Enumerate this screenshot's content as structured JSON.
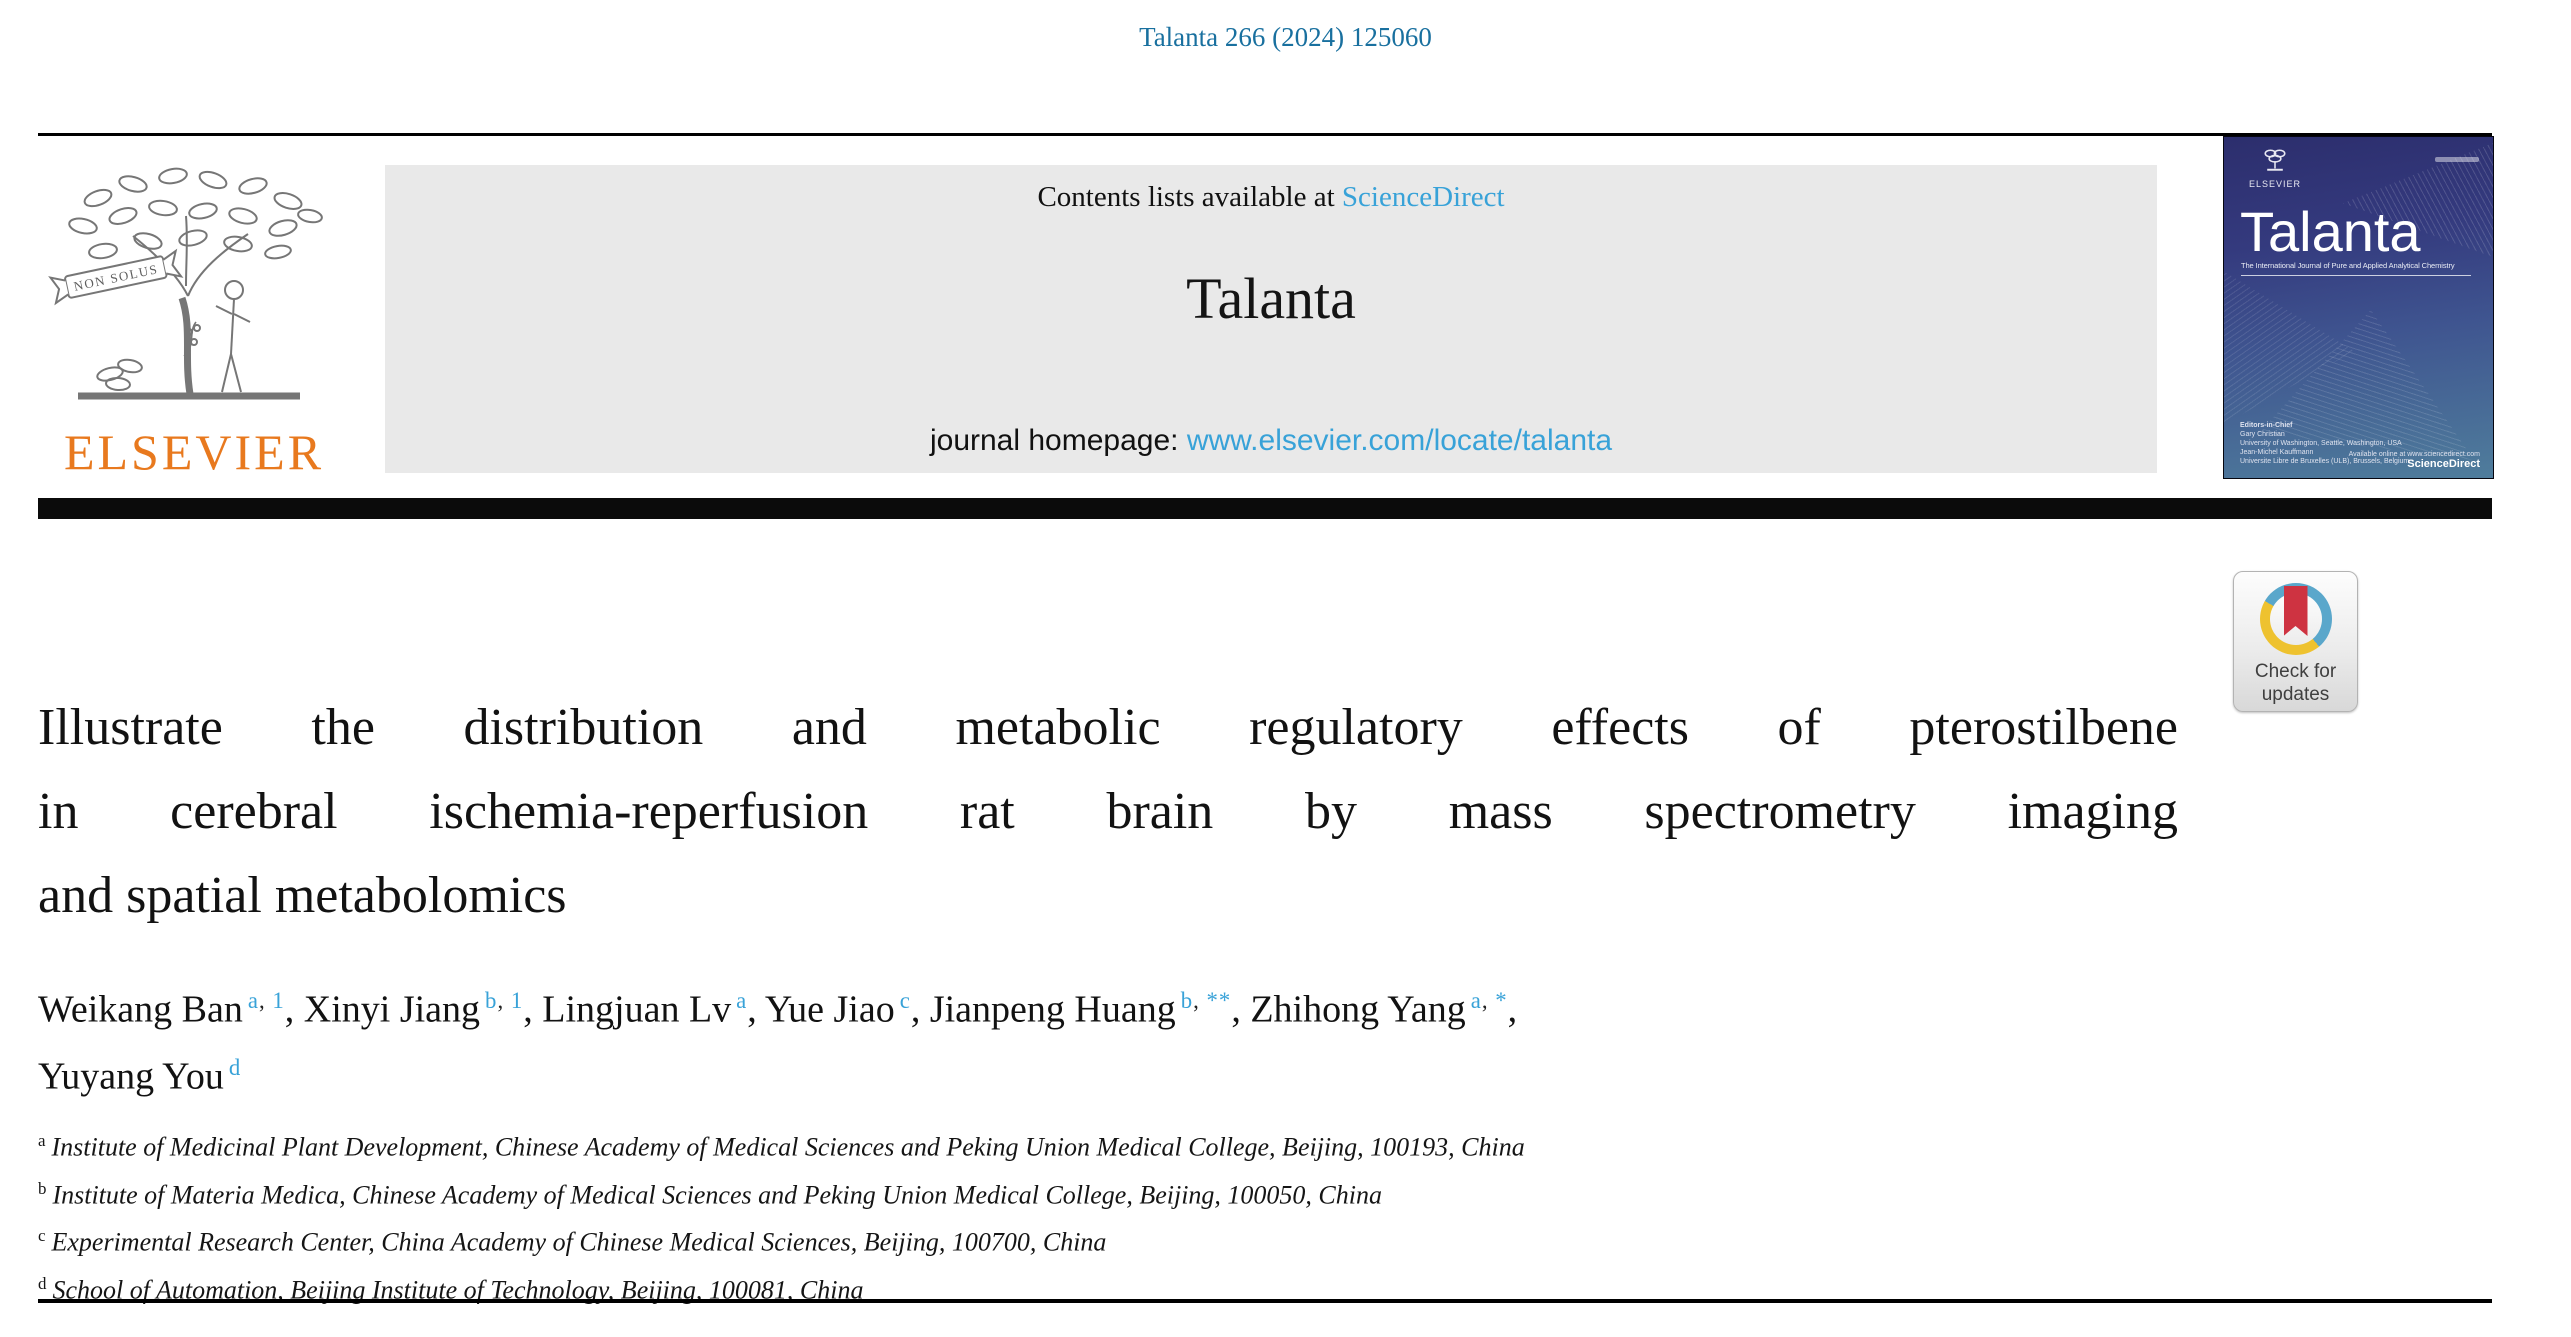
{
  "page": {
    "citation": "Talanta 266 (2024) 125060"
  },
  "masthead": {
    "contents_prefix": "Contents lists available at ",
    "contents_link": "ScienceDirect",
    "journal_name": "Talanta",
    "homepage_prefix": "journal homepage: ",
    "homepage_link": "www.elsevier.com/locate/talanta"
  },
  "publisher": {
    "wordmark": "ELSEVIER",
    "banner_motto": "NON SOLUS"
  },
  "cover": {
    "brand": "ELSEVIER",
    "title": "Talanta",
    "subtitle": "The International Journal of Pure and Applied Analytical Chemistry",
    "editors_heading": "Editors-in-Chief",
    "editors": [
      "Gary Christian",
      "University of Washington, Seattle, Washington, USA",
      "Jean-Michel Kauffmann",
      "Universite Libre de Bruxelles (ULB), Brussels, Belgium"
    ],
    "available_line": "Available online at www.sciencedirect.com",
    "sciencedirect_wordmark": "ScienceDirect"
  },
  "crossmark": {
    "line1": "Check for",
    "line2": "updates"
  },
  "article": {
    "title_lines": [
      "Illustrate the distribution and metabolic regulatory effects of pterostilbene",
      "in cerebral ischemia-reperfusion rat brain by mass spectrometry imaging",
      "and spatial metabolomics"
    ],
    "authors": [
      {
        "name": "Weikang Ban",
        "sup": "a, 1"
      },
      {
        "name": "Xinyi Jiang",
        "sup": "b, 1"
      },
      {
        "name": "Lingjuan Lv",
        "sup": "a"
      },
      {
        "name": "Yue Jiao",
        "sup": "c"
      },
      {
        "name": "Jianpeng Huang",
        "sup": "b, **"
      },
      {
        "name": "Zhihong Yang",
        "sup": "a, *"
      },
      {
        "name": "Yuyang You",
        "sup": "d"
      }
    ],
    "author_line_break_after_index": 5,
    "affiliations": [
      {
        "label": "a",
        "text": "Institute of Medicinal Plant Development, Chinese Academy of Medical Sciences and Peking Union Medical College, Beijing, 100193, China"
      },
      {
        "label": "b",
        "text": "Institute of Materia Medica, Chinese Academy of Medical Sciences and Peking Union Medical College, Beijing, 100050, China"
      },
      {
        "label": "c",
        "text": "Experimental Research Center, China Academy of Chinese Medical Sciences, Beijing, 100700, China"
      },
      {
        "label": "d",
        "text": "School of Automation, Beijing Institute of Technology, Beijing, 100081, China"
      }
    ]
  },
  "colors": {
    "citation_blue": "#19709f",
    "link_blue": "#38a2d8",
    "elsevier_orange": "#e8791e",
    "masthead_gray": "#e9e9e9",
    "cover_indigo": "#2c2e6d",
    "cover_steel_blue": "#4f7d9c",
    "crossmark_blue": "#5aa7cb",
    "crossmark_yellow": "#eec22f",
    "crossmark_red": "#ce3341"
  }
}
